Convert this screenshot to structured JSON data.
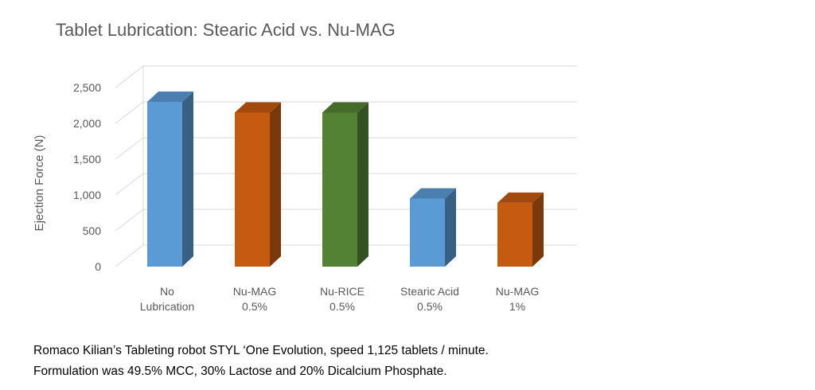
{
  "chart_data": {
    "type": "bar",
    "style": "3d-column",
    "title": "Tablet Lubrication: Stearic Acid vs. Nu-MAG",
    "xlabel": "",
    "ylabel": "Ejection Force (N)",
    "ylim": [
      0,
      2500
    ],
    "yticks": [
      0,
      500,
      1000,
      1500,
      2000,
      2500
    ],
    "ytick_labels": [
      "0",
      "500",
      "1,000",
      "1,500",
      "2,000",
      "2,500"
    ],
    "grid": true,
    "legend": "none",
    "categories": [
      [
        "No",
        "Lubrication"
      ],
      [
        "Nu-MAG",
        "0.5%"
      ],
      [
        "Nu-RICE",
        "0.5%"
      ],
      [
        "Stearic Acid",
        "0.5%"
      ],
      [
        "Nu-MAG",
        "1%"
      ]
    ],
    "values": [
      2300,
      2150,
      2150,
      950,
      890
    ],
    "colors": [
      "#5B9BD5",
      "#C55A11",
      "#548235",
      "#5B9BD5",
      "#C55A11"
    ]
  },
  "caption": {
    "line1": "Romaco Kilian’s Tableting robot STYL ‘One Evolution, speed 1,125 tablets / minute.",
    "line2": "Formulation was 49.5% MCC, 30% Lactose and 20% Dicalcium Phosphate."
  }
}
